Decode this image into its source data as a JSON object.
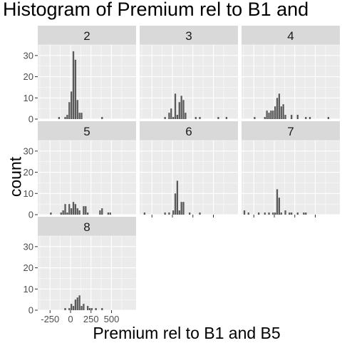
{
  "chart_data": {
    "type": "bar",
    "title": "Histogram of Premium rel to B1 and",
    "xlabel": "Premium rel to B1 and B5",
    "ylabel": "count",
    "xlim": [
      -400,
      800
    ],
    "ylim": [
      0,
      35
    ],
    "binwidth": 25,
    "x_ticks": [
      -250,
      0,
      250,
      500
    ],
    "y_ticks": [
      0,
      10,
      20,
      30
    ],
    "grid": true,
    "colors": {
      "bar": "#595959",
      "panel": "#ebebeb",
      "strip": "#d9d9d9",
      "grid": "#ffffff"
    },
    "facets": [
      {
        "label": "2",
        "bins": [
          [
            -150,
            1
          ],
          [
            -75,
            1
          ],
          [
            -50,
            2
          ],
          [
            -25,
            8
          ],
          [
            0,
            13
          ],
          [
            25,
            32
          ],
          [
            50,
            28
          ],
          [
            75,
            9
          ],
          [
            100,
            3
          ],
          [
            125,
            3
          ],
          [
            375,
            1
          ]
        ]
      },
      {
        "label": "3",
        "bins": [
          [
            -100,
            1
          ],
          [
            -50,
            3
          ],
          [
            -25,
            5
          ],
          [
            0,
            1
          ],
          [
            25,
            12
          ],
          [
            50,
            2
          ],
          [
            75,
            8
          ],
          [
            100,
            11
          ],
          [
            125,
            9
          ],
          [
            150,
            3
          ],
          [
            275,
            1
          ],
          [
            325,
            1
          ],
          [
            550,
            1
          ],
          [
            650,
            1
          ]
        ]
      },
      {
        "label": "4",
        "bins": [
          [
            -250,
            1
          ],
          [
            -125,
            1
          ],
          [
            -100,
            4
          ],
          [
            -75,
            3
          ],
          [
            -50,
            4
          ],
          [
            -25,
            4
          ],
          [
            0,
            6
          ],
          [
            25,
            10
          ],
          [
            50,
            12
          ],
          [
            75,
            6
          ],
          [
            100,
            7
          ],
          [
            125,
            2
          ],
          [
            200,
            2
          ],
          [
            275,
            2
          ],
          [
            375,
            1
          ],
          [
            425,
            1
          ],
          [
            650,
            1
          ]
        ]
      },
      {
        "label": "5",
        "bins": [
          [
            -250,
            1
          ],
          [
            -125,
            1
          ],
          [
            -100,
            2
          ],
          [
            -75,
            5
          ],
          [
            -50,
            1
          ],
          [
            -25,
            5
          ],
          [
            0,
            3
          ],
          [
            25,
            6
          ],
          [
            50,
            5
          ],
          [
            75,
            3
          ],
          [
            100,
            2
          ],
          [
            150,
            4
          ],
          [
            175,
            4
          ],
          [
            200,
            1
          ],
          [
            350,
            2
          ],
          [
            375,
            3
          ],
          [
            450,
            1
          ],
          [
            475,
            1
          ]
        ]
      },
      {
        "label": "6",
        "bins": [
          [
            -350,
            1
          ],
          [
            -100,
            1
          ],
          [
            -50,
            1
          ],
          [
            0,
            2
          ],
          [
            25,
            10
          ],
          [
            50,
            16
          ],
          [
            75,
            2
          ],
          [
            100,
            6
          ],
          [
            125,
            6
          ],
          [
            200,
            1
          ],
          [
            325,
            1
          ]
        ]
      },
      {
        "label": "7",
        "bins": [
          [
            -375,
            2
          ],
          [
            -325,
            1
          ],
          [
            -200,
            1
          ],
          [
            -125,
            1
          ],
          [
            -75,
            1
          ],
          [
            -25,
            1
          ],
          [
            0,
            1
          ],
          [
            25,
            12
          ],
          [
            50,
            8
          ],
          [
            75,
            1
          ],
          [
            125,
            2
          ],
          [
            175,
            1
          ],
          [
            200,
            1
          ],
          [
            275,
            1
          ],
          [
            350,
            1
          ],
          [
            375,
            1
          ]
        ]
      },
      {
        "label": "8",
        "bins": [
          [
            -75,
            1
          ],
          [
            -25,
            1
          ],
          [
            0,
            3
          ],
          [
            25,
            2
          ],
          [
            50,
            5
          ],
          [
            75,
            6
          ],
          [
            100,
            7
          ],
          [
            125,
            2
          ],
          [
            150,
            3
          ],
          [
            200,
            2
          ],
          [
            225,
            1
          ],
          [
            250,
            1
          ],
          [
            300,
            1
          ],
          [
            375,
            1
          ]
        ]
      }
    ]
  }
}
